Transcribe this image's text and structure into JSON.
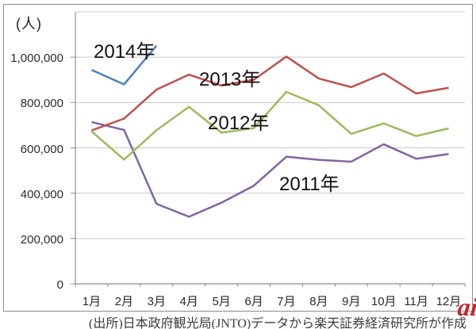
{
  "figure": {
    "unit_label": "(人)",
    "caption": "(出所)日本政府観光局(JNTO)データから楽天証券経済研究所が作成",
    "watermark": "ai"
  },
  "colors": {
    "grid": "#c9c9c9",
    "axis": "#8f8f8f",
    "tick_text": "#2b2b2b",
    "series_label_text": "#111111",
    "caption_text": "#3d3d3d",
    "watermark_red": "#c1272d",
    "figure_border": "#8c8c8c"
  },
  "chart_data": {
    "type": "line",
    "unit_label": "(人)",
    "categories": [
      "1月",
      "2月",
      "3月",
      "4月",
      "5月",
      "6月",
      "7月",
      "8月",
      "9月",
      "10月",
      "11月",
      "12月"
    ],
    "ylim": [
      0,
      1200000
    ],
    "ytick_step": 200000,
    "ytick_values": [
      0,
      200000,
      400000,
      600000,
      800000,
      1000000
    ],
    "ytick_labels": [
      "0",
      "200,000",
      "400,000",
      "600,000",
      "800,000",
      "1,000,000"
    ],
    "grid": true,
    "legend_position": "inline-labels-on-chart",
    "series": [
      {
        "name": "2014年",
        "color": "#4F81BD",
        "values": [
          944000,
          880000,
          1051000
        ]
      },
      {
        "name": "2013年",
        "color": "#C0504D",
        "values": [
          677000,
          729000,
          857000,
          923000,
          875000,
          901000,
          1003000,
          906000,
          868000,
          928000,
          840000,
          865000
        ]
      },
      {
        "name": "2012年",
        "color": "#9BBB59",
        "values": [
          673000,
          548000,
          678000,
          781000,
          667000,
          687000,
          847000,
          788000,
          662000,
          708000,
          652000,
          686000
        ]
      },
      {
        "name": "2011年",
        "color": "#8064A2",
        "values": [
          714000,
          679000,
          353000,
          296000,
          358000,
          433000,
          561000,
          547000,
          539000,
          616000,
          552000,
          573000
        ]
      }
    ]
  }
}
